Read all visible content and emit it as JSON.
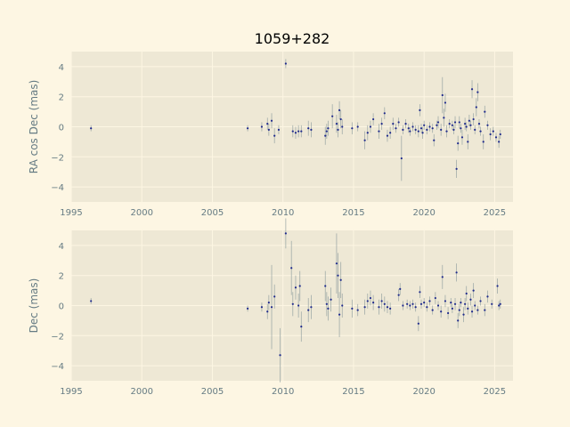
{
  "title": "1059+282",
  "colors": {
    "page_background": "#fdf6e3",
    "axes_background": "#eee8d5",
    "grid": "#fdf6e3",
    "marker": "#1f2a8c",
    "errorbar": "#93a1a1",
    "tick_text": "#657b83"
  },
  "chart_data": [
    {
      "type": "scatter",
      "name": "ra-cos-dec",
      "ylabel": "RA cos Dec (mas)",
      "xlim": [
        1995,
        2026.3
      ],
      "ylim": [
        -5,
        5
      ],
      "xticks": [
        1995,
        2000,
        2005,
        2010,
        2015,
        2020,
        2025
      ],
      "yticks": [
        -4,
        -2,
        0,
        2,
        4
      ],
      "grid": true,
      "points": [
        [
          1996.4,
          -0.1,
          0.2
        ],
        [
          2007.5,
          -0.1,
          0.2
        ],
        [
          2008.5,
          0.0,
          0.3
        ],
        [
          2008.9,
          0.2,
          0.4
        ],
        [
          2009.0,
          -0.2,
          0.4
        ],
        [
          2009.2,
          0.4,
          0.5
        ],
        [
          2009.4,
          -0.6,
          0.5
        ],
        [
          2009.7,
          -0.2,
          0.3
        ],
        [
          2010.2,
          4.2,
          0.3
        ],
        [
          2010.7,
          -0.3,
          0.4
        ],
        [
          2010.9,
          -0.4,
          0.4
        ],
        [
          2011.1,
          -0.3,
          0.4
        ],
        [
          2011.3,
          -0.3,
          0.4
        ],
        [
          2011.8,
          -0.1,
          0.5
        ],
        [
          2012.0,
          -0.2,
          0.5
        ],
        [
          2013.0,
          -0.6,
          0.6
        ],
        [
          2013.1,
          -0.3,
          0.5
        ],
        [
          2013.2,
          -0.1,
          0.5
        ],
        [
          2013.5,
          0.7,
          0.8
        ],
        [
          2013.8,
          0.2,
          0.6
        ],
        [
          2013.9,
          -0.2,
          0.5
        ],
        [
          2014.0,
          1.1,
          0.6
        ],
        [
          2014.1,
          0.5,
          0.6
        ],
        [
          2014.2,
          0.0,
          0.5
        ],
        [
          2014.9,
          -0.1,
          0.4
        ],
        [
          2015.3,
          0.0,
          0.3
        ],
        [
          2015.8,
          -0.9,
          0.6
        ],
        [
          2016.0,
          -0.4,
          0.5
        ],
        [
          2016.2,
          0.0,
          0.4
        ],
        [
          2016.4,
          0.5,
          0.4
        ],
        [
          2016.8,
          -0.3,
          0.5
        ],
        [
          2017.0,
          0.2,
          0.4
        ],
        [
          2017.2,
          0.9,
          0.4
        ],
        [
          2017.4,
          -0.6,
          0.4
        ],
        [
          2017.6,
          -0.4,
          0.4
        ],
        [
          2017.8,
          0.2,
          0.4
        ],
        [
          2018.0,
          -0.1,
          0.3
        ],
        [
          2018.2,
          0.3,
          0.3
        ],
        [
          2018.4,
          -2.1,
          1.5
        ],
        [
          2018.5,
          -0.2,
          0.3
        ],
        [
          2018.7,
          0.2,
          0.3
        ],
        [
          2018.9,
          -0.1,
          0.3
        ],
        [
          2019.0,
          -0.3,
          0.3
        ],
        [
          2019.2,
          0.0,
          0.3
        ],
        [
          2019.4,
          -0.2,
          0.3
        ],
        [
          2019.6,
          -0.3,
          0.4
        ],
        [
          2019.7,
          1.1,
          0.4
        ],
        [
          2019.8,
          -0.1,
          0.3
        ],
        [
          2019.9,
          -0.4,
          0.4
        ],
        [
          2020.0,
          0.1,
          0.3
        ],
        [
          2020.2,
          -0.2,
          0.3
        ],
        [
          2020.4,
          0.0,
          0.3
        ],
        [
          2020.6,
          -0.1,
          0.3
        ],
        [
          2020.7,
          -0.9,
          0.4
        ],
        [
          2020.9,
          0.1,
          0.3
        ],
        [
          2021.0,
          0.3,
          0.4
        ],
        [
          2021.2,
          -0.2,
          0.4
        ],
        [
          2021.3,
          2.1,
          1.2
        ],
        [
          2021.4,
          0.6,
          0.6
        ],
        [
          2021.5,
          1.6,
          0.6
        ],
        [
          2021.6,
          -0.3,
          0.4
        ],
        [
          2021.8,
          0.2,
          0.3
        ],
        [
          2022.0,
          0.1,
          0.3
        ],
        [
          2022.1,
          -0.2,
          0.3
        ],
        [
          2022.2,
          0.3,
          0.4
        ],
        [
          2022.3,
          -2.8,
          0.6
        ],
        [
          2022.4,
          -1.1,
          0.5
        ],
        [
          2022.5,
          0.3,
          0.4
        ],
        [
          2022.6,
          -0.1,
          0.3
        ],
        [
          2022.7,
          -0.7,
          0.5
        ],
        [
          2022.9,
          0.2,
          0.4
        ],
        [
          2023.0,
          0.0,
          0.3
        ],
        [
          2023.1,
          -1.0,
          0.5
        ],
        [
          2023.2,
          0.4,
          0.4
        ],
        [
          2023.3,
          0.1,
          0.3
        ],
        [
          2023.4,
          2.5,
          0.6
        ],
        [
          2023.5,
          0.5,
          0.4
        ],
        [
          2023.6,
          -0.2,
          0.3
        ],
        [
          2023.7,
          1.3,
          0.6
        ],
        [
          2023.8,
          2.3,
          0.6
        ],
        [
          2023.9,
          0.2,
          0.3
        ],
        [
          2024.0,
          -0.3,
          0.3
        ],
        [
          2024.2,
          -1.0,
          0.5
        ],
        [
          2024.3,
          1.0,
          0.4
        ],
        [
          2024.5,
          0.1,
          0.3
        ],
        [
          2024.7,
          -0.5,
          0.4
        ],
        [
          2024.9,
          -0.3,
          0.3
        ],
        [
          2025.1,
          -0.7,
          0.3
        ],
        [
          2025.3,
          -1.0,
          0.4
        ],
        [
          2025.4,
          -0.5,
          0.3
        ]
      ]
    },
    {
      "type": "scatter",
      "name": "dec",
      "ylabel": "Dec (mas)",
      "xlim": [
        1995,
        2026.3
      ],
      "ylim": [
        -5,
        5
      ],
      "xticks": [
        1995,
        2000,
        2005,
        2010,
        2015,
        2020,
        2025
      ],
      "yticks": [
        -4,
        -2,
        0,
        2,
        4
      ],
      "grid": true,
      "points": [
        [
          1996.4,
          0.3,
          0.2
        ],
        [
          2007.5,
          -0.2,
          0.2
        ],
        [
          2008.5,
          -0.1,
          0.3
        ],
        [
          2008.9,
          -0.4,
          0.5
        ],
        [
          2009.0,
          0.2,
          0.5
        ],
        [
          2009.2,
          -0.1,
          2.8
        ],
        [
          2009.4,
          0.6,
          0.8
        ],
        [
          2009.8,
          -3.3,
          1.8
        ],
        [
          2010.2,
          4.8,
          1.0
        ],
        [
          2010.6,
          2.5,
          1.8
        ],
        [
          2010.7,
          0.1,
          0.8
        ],
        [
          2010.9,
          1.2,
          0.8
        ],
        [
          2011.1,
          0.0,
          0.8
        ],
        [
          2011.2,
          1.3,
          1.0
        ],
        [
          2011.3,
          -1.4,
          1.0
        ],
        [
          2011.8,
          -0.3,
          0.8
        ],
        [
          2012.0,
          -0.1,
          0.8
        ],
        [
          2013.0,
          1.3,
          1.0
        ],
        [
          2013.1,
          0.1,
          0.8
        ],
        [
          2013.2,
          -0.2,
          0.8
        ],
        [
          2013.4,
          0.4,
          0.8
        ],
        [
          2013.8,
          2.8,
          2.0
        ],
        [
          2013.9,
          2.0,
          1.5
        ],
        [
          2014.0,
          -0.6,
          1.5
        ],
        [
          2014.1,
          1.7,
          1.2
        ],
        [
          2014.2,
          0.0,
          0.8
        ],
        [
          2014.9,
          -0.2,
          0.6
        ],
        [
          2015.3,
          -0.3,
          0.4
        ],
        [
          2015.8,
          -0.1,
          0.5
        ],
        [
          2016.0,
          0.3,
          0.5
        ],
        [
          2016.2,
          0.5,
          0.5
        ],
        [
          2016.4,
          0.2,
          0.5
        ],
        [
          2016.8,
          -0.1,
          0.5
        ],
        [
          2017.0,
          0.3,
          0.5
        ],
        [
          2017.2,
          0.1,
          0.5
        ],
        [
          2017.4,
          -0.1,
          0.4
        ],
        [
          2017.6,
          -0.2,
          0.4
        ],
        [
          2018.2,
          0.7,
          0.4
        ],
        [
          2018.3,
          1.1,
          0.4
        ],
        [
          2018.5,
          0.0,
          0.3
        ],
        [
          2018.8,
          0.1,
          0.3
        ],
        [
          2019.0,
          0.0,
          0.3
        ],
        [
          2019.2,
          0.1,
          0.3
        ],
        [
          2019.4,
          -0.1,
          0.3
        ],
        [
          2019.6,
          -1.2,
          0.5
        ],
        [
          2019.7,
          0.9,
          0.4
        ],
        [
          2019.8,
          0.1,
          0.3
        ],
        [
          2020.0,
          0.2,
          0.3
        ],
        [
          2020.2,
          -0.1,
          0.3
        ],
        [
          2020.4,
          0.3,
          0.3
        ],
        [
          2020.6,
          -0.3,
          0.3
        ],
        [
          2020.8,
          0.5,
          0.4
        ],
        [
          2021.0,
          0.0,
          0.3
        ],
        [
          2021.2,
          -0.4,
          0.4
        ],
        [
          2021.3,
          1.9,
          0.8
        ],
        [
          2021.5,
          0.3,
          0.4
        ],
        [
          2021.7,
          -0.5,
          0.4
        ],
        [
          2021.9,
          0.2,
          0.3
        ],
        [
          2022.0,
          -0.2,
          0.3
        ],
        [
          2022.2,
          0.1,
          0.4
        ],
        [
          2022.3,
          2.2,
          0.6
        ],
        [
          2022.4,
          -1.0,
          0.5
        ],
        [
          2022.5,
          -0.3,
          0.4
        ],
        [
          2022.6,
          0.2,
          0.3
        ],
        [
          2022.8,
          -0.6,
          0.5
        ],
        [
          2022.9,
          0.1,
          0.4
        ],
        [
          2023.0,
          0.8,
          0.5
        ],
        [
          2023.1,
          -0.2,
          0.4
        ],
        [
          2023.3,
          0.4,
          0.4
        ],
        [
          2023.4,
          -0.4,
          0.4
        ],
        [
          2023.5,
          1.0,
          0.5
        ],
        [
          2023.6,
          0.0,
          0.3
        ],
        [
          2023.8,
          -0.3,
          0.3
        ],
        [
          2024.0,
          0.3,
          0.3
        ],
        [
          2024.3,
          -0.3,
          0.4
        ],
        [
          2024.5,
          0.6,
          0.4
        ],
        [
          2024.8,
          0.1,
          0.3
        ],
        [
          2025.2,
          1.3,
          0.5
        ],
        [
          2025.3,
          0.0,
          0.3
        ],
        [
          2025.4,
          0.1,
          0.3
        ]
      ]
    }
  ]
}
